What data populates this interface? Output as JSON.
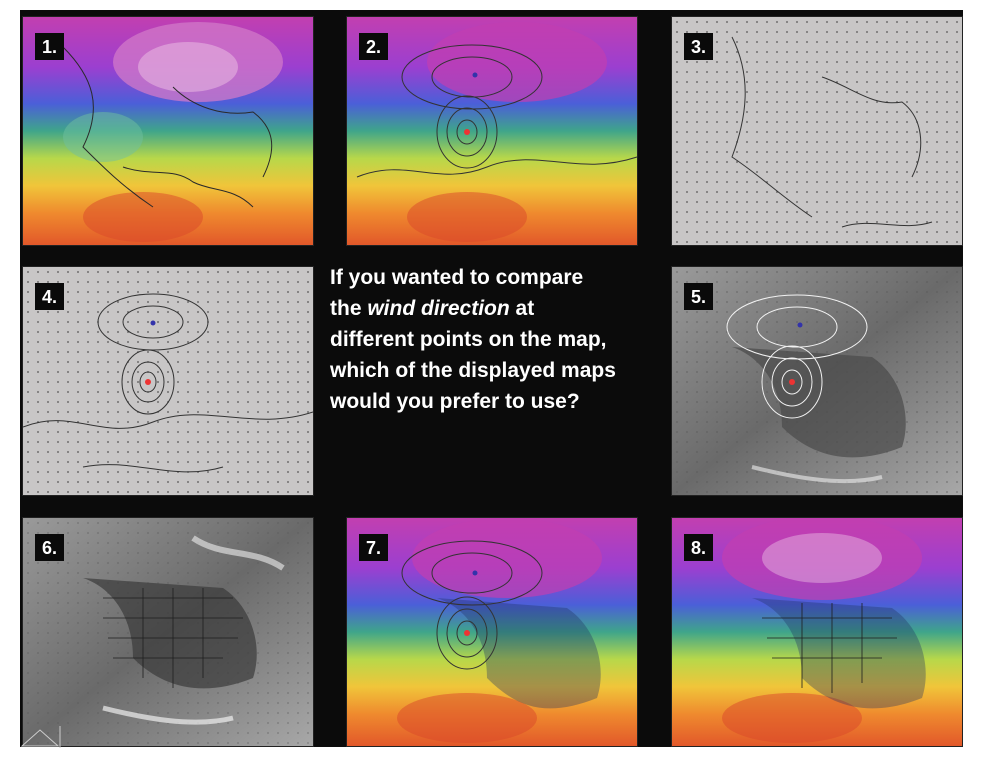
{
  "tiles": [
    {
      "label": "1.",
      "style": "color"
    },
    {
      "label": "2.",
      "style": "color-contours"
    },
    {
      "label": "3.",
      "style": "gray-arrows"
    },
    {
      "label": "4.",
      "style": "gray-contours"
    },
    {
      "label": "5.",
      "style": "satellite-contours"
    },
    {
      "label": "6.",
      "style": "satellite"
    },
    {
      "label": "7.",
      "style": "color-contours-satellite"
    },
    {
      "label": "8.",
      "style": "color-satellite"
    }
  ],
  "question": {
    "part1": "If you wanted to compare the ",
    "em1": "wind direction",
    "part2": " at different points on the map, which of the displayed maps would you prefer to use?"
  },
  "colors": {
    "background": "#0b0b0b",
    "badge_text": "#ffffff",
    "question_text": "#ffffff"
  }
}
